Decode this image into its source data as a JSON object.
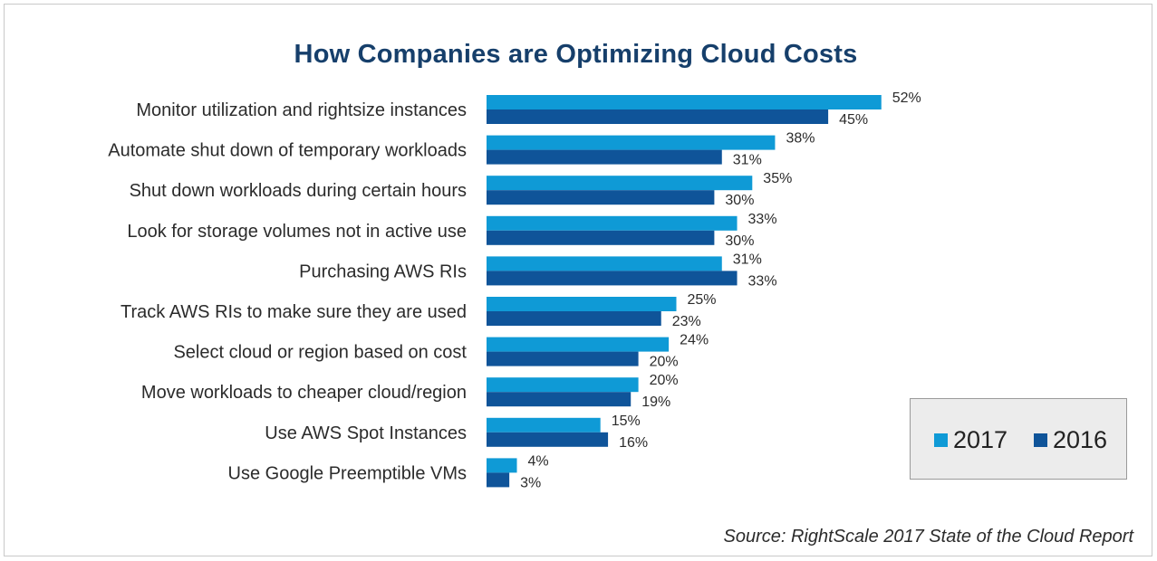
{
  "chart_data": {
    "type": "bar",
    "orientation": "horizontal",
    "title": "How Companies are Optimizing Cloud Costs",
    "categories": [
      "Monitor utilization and rightsize instances",
      "Automate shut down of temporary workloads",
      "Shut down workloads during certain hours",
      "Look for storage volumes not in active use",
      "Purchasing AWS RIs",
      "Track AWS RIs to make sure they are used",
      "Select cloud or region based on cost",
      "Move workloads to cheaper cloud/region",
      "Use AWS Spot Instances",
      "Use Google Preemptible VMs"
    ],
    "series": [
      {
        "name": "2017",
        "color": "#0f9ad6",
        "values": [
          52,
          38,
          35,
          33,
          31,
          25,
          24,
          20,
          15,
          4
        ],
        "labels": [
          "52%",
          "38%",
          "35%",
          "33%",
          "31%",
          "25%",
          "24%",
          "20%",
          "15%",
          "4%"
        ]
      },
      {
        "name": "2016",
        "color": "#0f5499",
        "values": [
          45,
          31,
          30,
          30,
          33,
          23,
          20,
          19,
          16,
          3
        ],
        "labels": [
          "45%",
          "31%",
          "30%",
          "30%",
          "33%",
          "23%",
          "20%",
          "19%",
          "16%",
          "3%"
        ]
      }
    ],
    "xlabel": "",
    "ylabel": "",
    "xlim": [
      0,
      52
    ],
    "grid": false,
    "legend_position": "bottom-right",
    "source": "Source: RightScale 2017 State of the Cloud Report"
  }
}
